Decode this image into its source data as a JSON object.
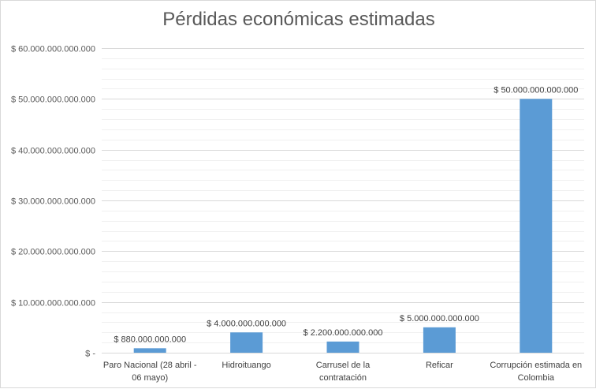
{
  "chart_data": {
    "type": "bar",
    "title": "Pérdidas económicas estimadas",
    "xlabel": "",
    "ylabel": "",
    "categories": [
      [
        "Paro Nacional (28 abril -",
        "06 mayo)"
      ],
      [
        "Hidroituango"
      ],
      [
        "Carrusel de la",
        "contratación"
      ],
      [
        "Reficar"
      ],
      [
        "Corrupción estimada en",
        "Colombia"
      ]
    ],
    "values": [
      880000000000,
      4000000000000,
      2200000000000,
      5000000000000,
      50000000000000
    ],
    "data_labels": [
      "$ 880.000.000.000",
      "$ 4.000.000.000.000",
      "$ 2.200.000.000.000",
      "$ 5.000.000.000.000",
      "$ 50.000.000.000.000"
    ],
    "ylim": [
      0,
      60000000000000
    ],
    "y_ticks": [
      {
        "value": 0,
        "label": "$ -"
      },
      {
        "value": 10000000000000,
        "label": "$ 10.000.000.000.000"
      },
      {
        "value": 20000000000000,
        "label": "$ 20.000.000.000.000"
      },
      {
        "value": 30000000000000,
        "label": "$ 30.000.000.000.000"
      },
      {
        "value": 40000000000000,
        "label": "$ 40.000.000.000.000"
      },
      {
        "value": 50000000000000,
        "label": "$ 50.000.000.000.000"
      },
      {
        "value": 60000000000000,
        "label": "$ 60.000.000.000.000"
      }
    ],
    "minor_gridlines": true,
    "legend": "none",
    "colors": {
      "bar": "#5b9bd5",
      "major_grid": "#d9d9d9",
      "minor_grid": "#f0f0f0"
    }
  }
}
